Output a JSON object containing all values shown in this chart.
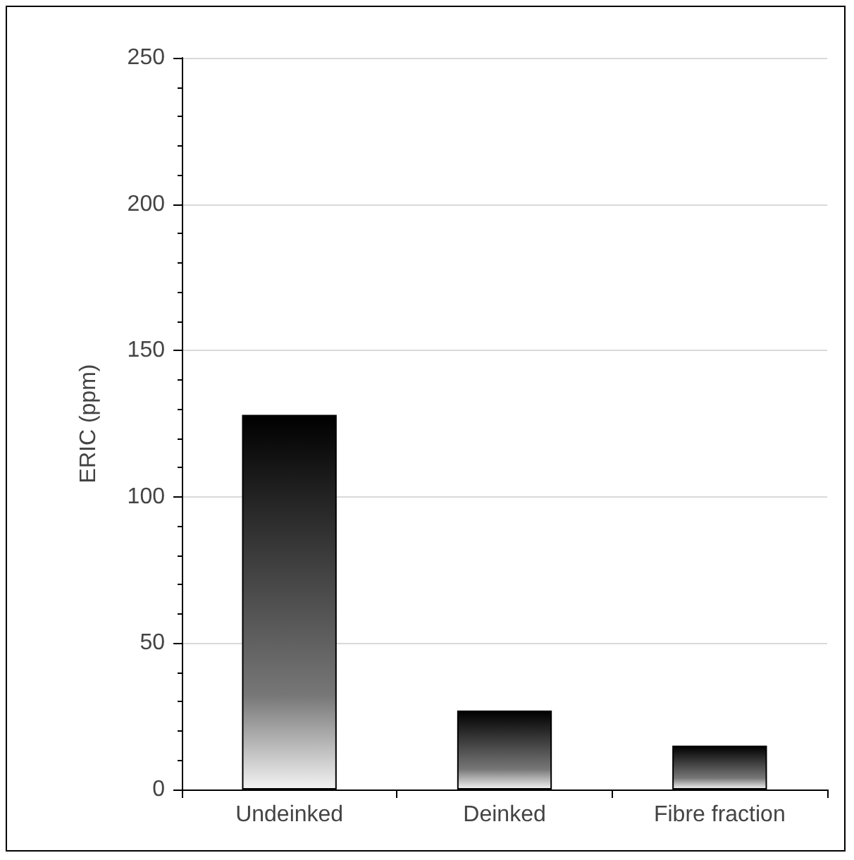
{
  "chart_data": {
    "type": "bar",
    "ylabel": "ERIC (ppm)",
    "categories": [
      "Undeinked",
      "Deinked",
      "Fibre fraction"
    ],
    "values": [
      128,
      27,
      15
    ],
    "color": "#000000",
    "ylim": [
      0,
      250
    ],
    "yticks": [
      0,
      50,
      100,
      150,
      200,
      250
    ],
    "grid": "y"
  }
}
